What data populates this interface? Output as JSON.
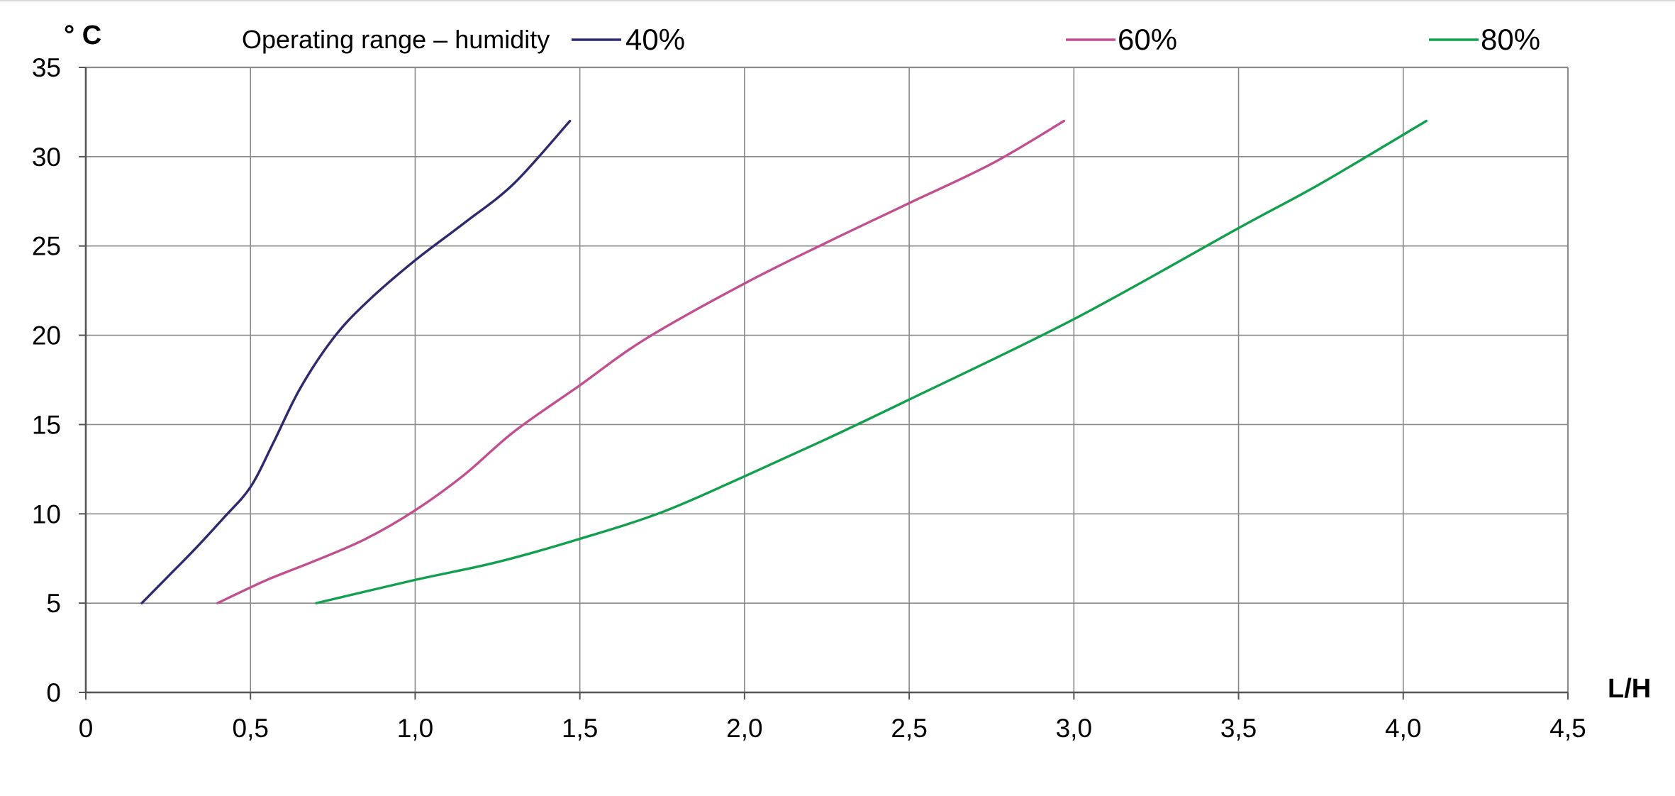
{
  "chart_data": {
    "type": "line",
    "title": "",
    "legend_title": "Operating range – humidity",
    "legend_position": "top",
    "xlabel": "L/H",
    "ylabel": "° C",
    "xlim": [
      0,
      4.5
    ],
    "ylim": [
      0,
      35
    ],
    "x_ticks": [
      "0",
      "0,5",
      "1,0",
      "1,5",
      "2,0",
      "2,5",
      "3,0",
      "3,5",
      "4,0",
      "4,5"
    ],
    "y_ticks": [
      "0",
      "5",
      "10",
      "15",
      "20",
      "25",
      "30",
      "35"
    ],
    "grid": true,
    "series": [
      {
        "name": "40%",
        "color": "#2e2a6e",
        "points": [
          [
            0.17,
            5
          ],
          [
            0.25,
            6.5
          ],
          [
            0.33,
            8
          ],
          [
            0.42,
            9.8
          ],
          [
            0.5,
            11.5
          ],
          [
            0.57,
            14
          ],
          [
            0.65,
            17
          ],
          [
            0.75,
            19.8
          ],
          [
            0.85,
            21.8
          ],
          [
            1.0,
            24.2
          ],
          [
            1.15,
            26.3
          ],
          [
            1.3,
            28.5
          ],
          [
            1.47,
            32
          ]
        ]
      },
      {
        "name": "60%",
        "color": "#c0508f",
        "points": [
          [
            0.4,
            5
          ],
          [
            0.55,
            6.3
          ],
          [
            0.7,
            7.4
          ],
          [
            0.85,
            8.6
          ],
          [
            1.0,
            10.2
          ],
          [
            1.15,
            12.2
          ],
          [
            1.3,
            14.6
          ],
          [
            1.5,
            17.2
          ],
          [
            1.7,
            19.8
          ],
          [
            2.0,
            22.9
          ],
          [
            2.25,
            25.2
          ],
          [
            2.5,
            27.4
          ],
          [
            2.75,
            29.6
          ],
          [
            2.97,
            32
          ]
        ]
      },
      {
        "name": "80%",
        "color": "#12a04e",
        "points": [
          [
            0.7,
            5
          ],
          [
            1.0,
            6.3
          ],
          [
            1.25,
            7.3
          ],
          [
            1.5,
            8.6
          ],
          [
            1.75,
            10.1
          ],
          [
            2.0,
            12.1
          ],
          [
            2.25,
            14.2
          ],
          [
            2.5,
            16.4
          ],
          [
            3.0,
            20.9
          ],
          [
            3.5,
            26.0
          ],
          [
            3.75,
            28.5
          ],
          [
            4.07,
            32
          ]
        ]
      }
    ]
  }
}
